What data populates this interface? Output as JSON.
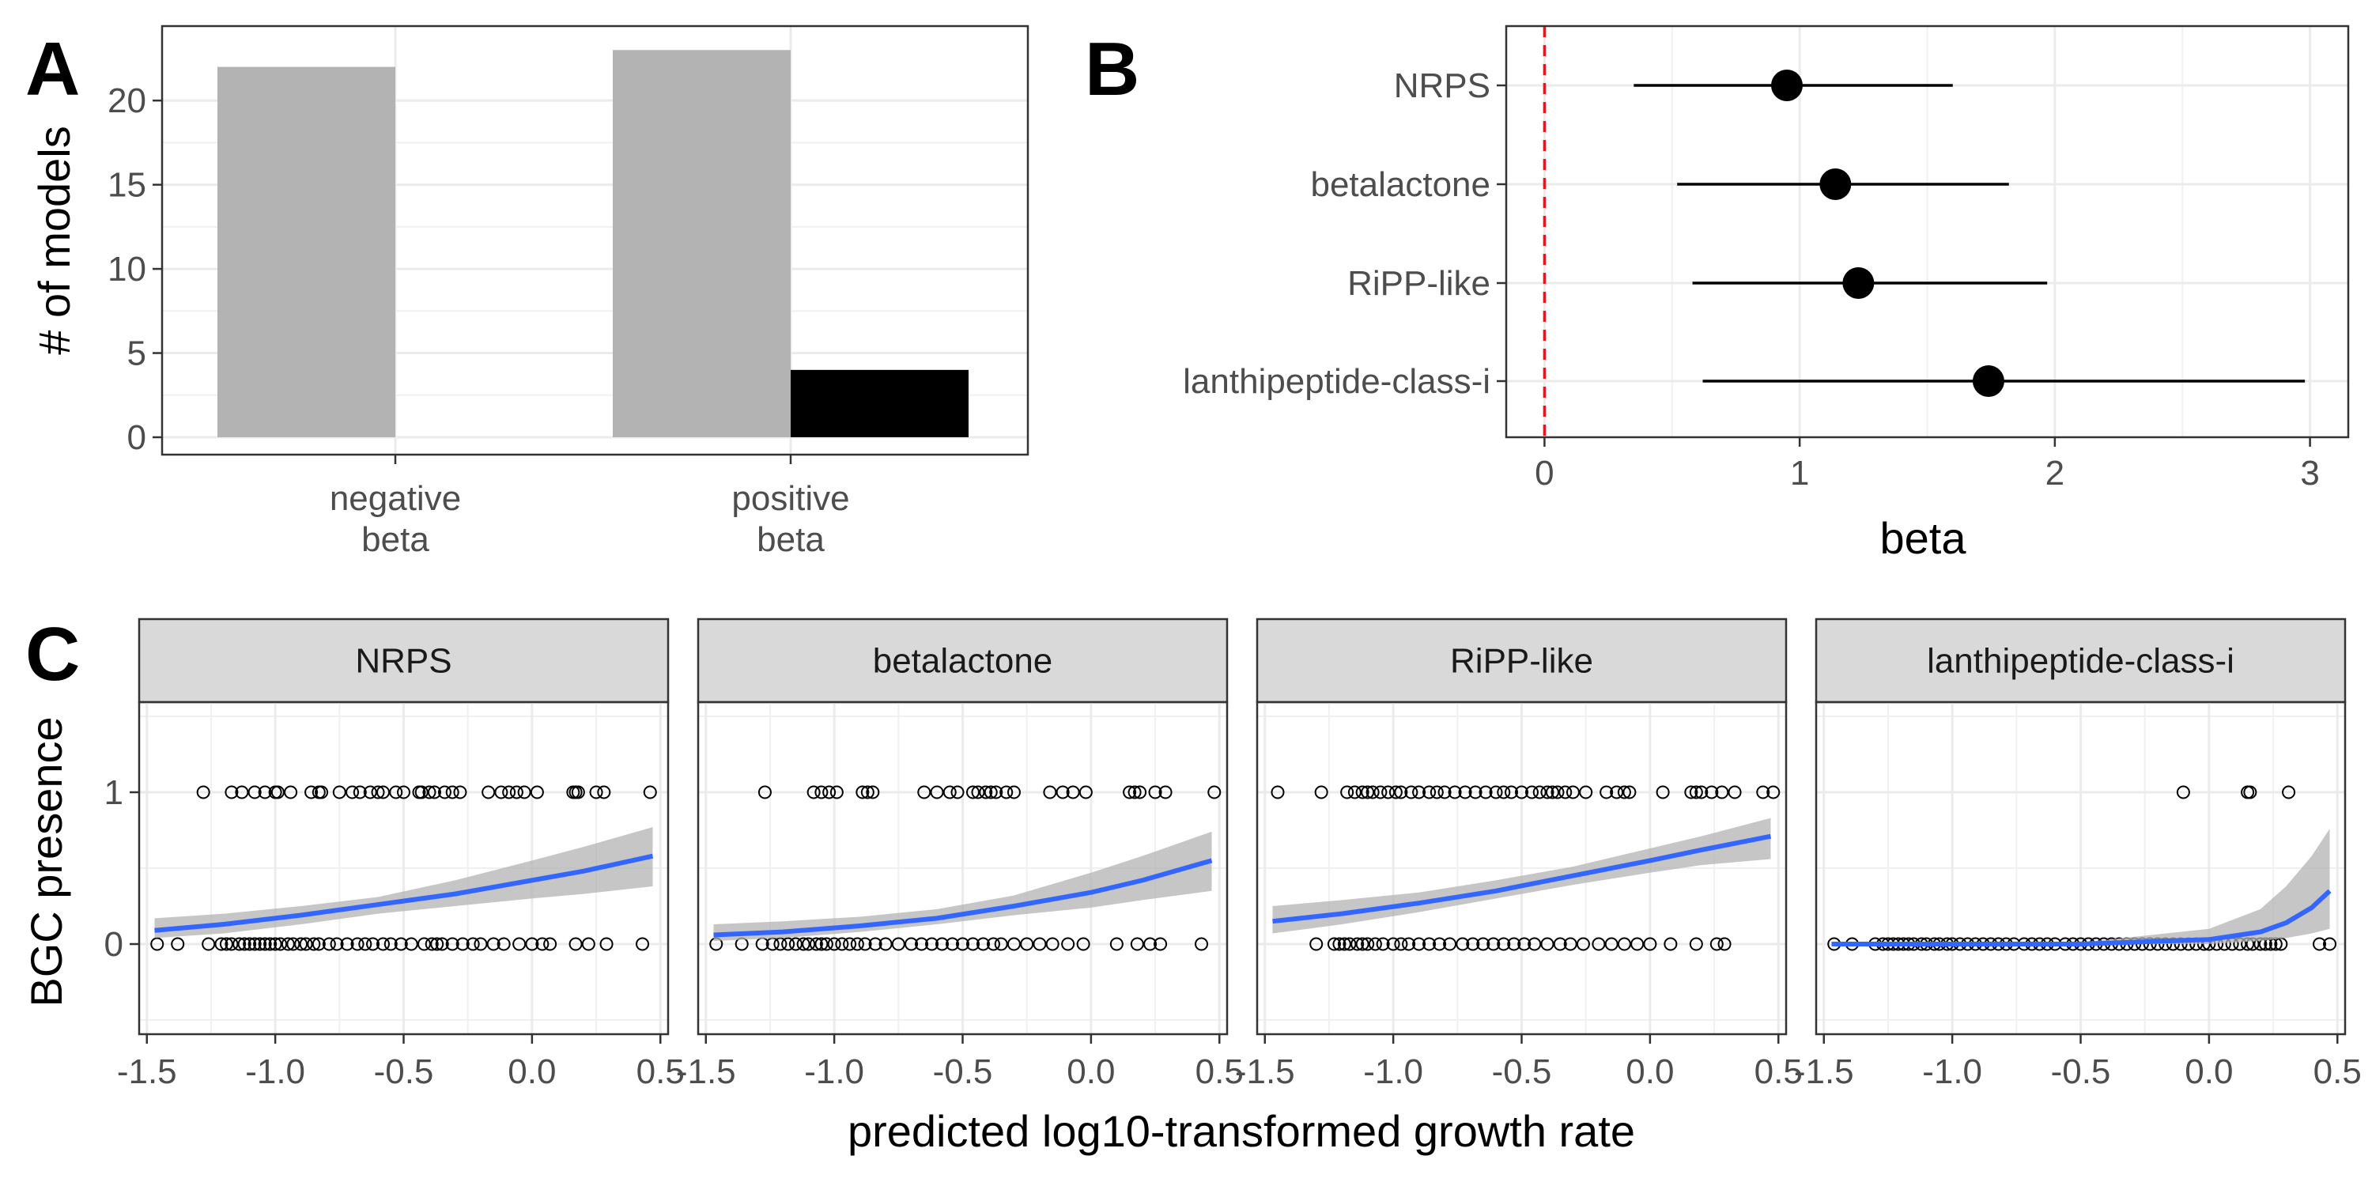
{
  "panels": {
    "a": "A",
    "b": "B",
    "c": "C"
  },
  "chart_data": [
    {
      "panel": "A",
      "type": "bar",
      "categories": [
        "negative\nbeta",
        "positive\nbeta"
      ],
      "series": [
        {
          "color": "#b3b3b3",
          "values": [
            22,
            23
          ]
        },
        {
          "color": "#000000",
          "values": [
            0,
            4
          ]
        }
      ],
      "ylabel": "# of models",
      "xlabel": "",
      "ylim": [
        0,
        24
      ],
      "yticks": [
        0,
        5,
        10,
        15,
        20
      ],
      "grid": true
    },
    {
      "panel": "B",
      "type": "scatter",
      "subtype": "point-range",
      "categories": [
        "NRPS",
        "betalactone",
        "RiPP-like",
        "lanthipeptide-class-i"
      ],
      "estimates": [
        0.95,
        1.14,
        1.23,
        1.74
      ],
      "lower": [
        0.35,
        0.52,
        0.58,
        0.62
      ],
      "upper": [
        1.6,
        1.82,
        1.97,
        2.98
      ],
      "reference_line": {
        "x": 0,
        "color": "#e31a1c",
        "style": "dashed"
      },
      "xlabel": "beta",
      "xlim": [
        -0.15,
        3.15
      ],
      "xticks": [
        0,
        1,
        2,
        3
      ],
      "grid": true
    },
    {
      "panel": "C",
      "type": "scatter",
      "subtype": "faceted logistic fit",
      "xlabel": "predicted log10-transformed growth rate",
      "ylabel": "BGC presence",
      "xlim": [
        -1.53,
        0.53
      ],
      "ylim": [
        -0.55,
        1.55
      ],
      "xticks": [
        -1.5,
        -1.0,
        -0.5,
        0.0,
        0.5
      ],
      "xtick_labels": [
        "-1.5",
        "-1.0",
        "-0.5",
        "0.0",
        "0.5"
      ],
      "yticks": [
        0,
        1
      ],
      "fit_color": "#3366ff",
      "ribbon_color": "#b3b3b3",
      "facets": [
        {
          "name": "NRPS",
          "points_y1": [
            -1.28,
            -1.17,
            -1.13,
            -1.08,
            -1.04,
            -1.0,
            -0.99,
            -0.94,
            -0.86,
            -0.83,
            -0.82,
            -0.75,
            -0.7,
            -0.67,
            -0.63,
            -0.6,
            -0.58,
            -0.53,
            -0.5,
            -0.44,
            -0.43,
            -0.4,
            -0.38,
            -0.34,
            -0.31,
            -0.28,
            -0.17,
            -0.12,
            -0.09,
            -0.06,
            -0.03,
            0.02,
            0.16,
            0.17,
            0.18,
            0.25,
            0.28,
            0.46
          ],
          "points_y0": [
            -1.46,
            -1.38,
            -1.26,
            -1.21,
            -1.19,
            -1.17,
            -1.14,
            -1.12,
            -1.1,
            -1.08,
            -1.06,
            -1.04,
            -1.02,
            -1.0,
            -0.98,
            -0.95,
            -0.93,
            -0.9,
            -0.88,
            -0.85,
            -0.83,
            -0.79,
            -0.76,
            -0.72,
            -0.68,
            -0.65,
            -0.62,
            -0.58,
            -0.55,
            -0.51,
            -0.47,
            -0.42,
            -0.39,
            -0.37,
            -0.35,
            -0.31,
            -0.27,
            -0.23,
            -0.2,
            -0.15,
            -0.11,
            -0.05,
            0.0,
            0.04,
            0.07,
            0.17,
            0.22,
            0.29,
            0.43
          ],
          "fit_x": [
            -1.47,
            -1.2,
            -0.9,
            -0.6,
            -0.3,
            0.0,
            0.2,
            0.47
          ],
          "fit_y": [
            0.09,
            0.13,
            0.19,
            0.26,
            0.33,
            0.42,
            0.48,
            0.58
          ],
          "fit_lo": [
            0.04,
            0.07,
            0.13,
            0.2,
            0.25,
            0.3,
            0.33,
            0.38
          ],
          "fit_hi": [
            0.17,
            0.2,
            0.25,
            0.31,
            0.42,
            0.55,
            0.64,
            0.77
          ]
        },
        {
          "name": "betalactone",
          "points_y1": [
            -1.27,
            -1.08,
            -1.05,
            -1.02,
            -0.99,
            -0.89,
            -0.87,
            -0.85,
            -0.65,
            -0.6,
            -0.55,
            -0.52,
            -0.46,
            -0.44,
            -0.41,
            -0.39,
            -0.37,
            -0.33,
            -0.3,
            -0.16,
            -0.11,
            -0.07,
            -0.02,
            0.15,
            0.17,
            0.19,
            0.25,
            0.29,
            0.48
          ],
          "points_y0": [
            -1.46,
            -1.36,
            -1.28,
            -1.24,
            -1.21,
            -1.18,
            -1.15,
            -1.12,
            -1.1,
            -1.07,
            -1.05,
            -1.03,
            -1.0,
            -0.97,
            -0.94,
            -0.91,
            -0.88,
            -0.84,
            -0.8,
            -0.75,
            -0.7,
            -0.66,
            -0.62,
            -0.58,
            -0.54,
            -0.5,
            -0.46,
            -0.42,
            -0.38,
            -0.35,
            -0.3,
            -0.25,
            -0.2,
            -0.15,
            -0.09,
            -0.03,
            0.1,
            0.18,
            0.23,
            0.27,
            0.43
          ],
          "fit_x": [
            -1.47,
            -1.2,
            -0.9,
            -0.6,
            -0.3,
            0.0,
            0.2,
            0.47
          ],
          "fit_y": [
            0.06,
            0.08,
            0.12,
            0.17,
            0.25,
            0.34,
            0.42,
            0.55
          ],
          "fit_lo": [
            0.02,
            0.04,
            0.08,
            0.13,
            0.19,
            0.24,
            0.29,
            0.35
          ],
          "fit_hi": [
            0.13,
            0.15,
            0.18,
            0.23,
            0.32,
            0.47,
            0.58,
            0.74
          ]
        },
        {
          "name": "RiPP-like",
          "points_y1": [
            -1.45,
            -1.28,
            -1.18,
            -1.15,
            -1.12,
            -1.1,
            -1.08,
            -1.05,
            -1.02,
            -0.99,
            -0.97,
            -0.93,
            -0.9,
            -0.86,
            -0.83,
            -0.8,
            -0.76,
            -0.72,
            -0.68,
            -0.64,
            -0.6,
            -0.57,
            -0.54,
            -0.5,
            -0.46,
            -0.43,
            -0.4,
            -0.38,
            -0.36,
            -0.33,
            -0.3,
            -0.25,
            -0.17,
            -0.13,
            -0.1,
            -0.08,
            0.05,
            0.16,
            0.18,
            0.2,
            0.24,
            0.28,
            0.33,
            0.44,
            0.48
          ],
          "points_y0": [
            -1.3,
            -1.23,
            -1.21,
            -1.19,
            -1.17,
            -1.14,
            -1.12,
            -1.1,
            -1.07,
            -1.04,
            -1.0,
            -0.97,
            -0.94,
            -0.9,
            -0.86,
            -0.82,
            -0.78,
            -0.73,
            -0.69,
            -0.65,
            -0.61,
            -0.57,
            -0.53,
            -0.49,
            -0.45,
            -0.4,
            -0.35,
            -0.31,
            -0.26,
            -0.2,
            -0.15,
            -0.1,
            -0.05,
            0.0,
            0.08,
            0.18,
            0.26,
            0.29
          ],
          "fit_x": [
            -1.47,
            -1.2,
            -0.9,
            -0.6,
            -0.3,
            0.0,
            0.2,
            0.47
          ],
          "fit_y": [
            0.15,
            0.2,
            0.27,
            0.35,
            0.45,
            0.55,
            0.62,
            0.71
          ],
          "fit_lo": [
            0.07,
            0.13,
            0.21,
            0.3,
            0.39,
            0.47,
            0.52,
            0.56
          ],
          "fit_hi": [
            0.25,
            0.29,
            0.34,
            0.42,
            0.51,
            0.63,
            0.71,
            0.83
          ]
        },
        {
          "name": "lanthipeptide-class-i",
          "points_y1": [
            -0.1,
            0.15,
            0.16,
            0.31
          ],
          "points_y0": [
            -1.46,
            -1.39,
            -1.3,
            -1.27,
            -1.25,
            -1.23,
            -1.21,
            -1.19,
            -1.17,
            -1.15,
            -1.12,
            -1.1,
            -1.07,
            -1.05,
            -1.02,
            -1.0,
            -0.97,
            -0.94,
            -0.91,
            -0.88,
            -0.85,
            -0.82,
            -0.79,
            -0.76,
            -0.72,
            -0.69,
            -0.66,
            -0.63,
            -0.6,
            -0.56,
            -0.53,
            -0.5,
            -0.47,
            -0.44,
            -0.41,
            -0.38,
            -0.35,
            -0.32,
            -0.29,
            -0.26,
            -0.23,
            -0.2,
            -0.17,
            -0.14,
            -0.11,
            -0.08,
            -0.05,
            -0.02,
            0.0,
            0.03,
            0.06,
            0.09,
            0.12,
            0.15,
            0.17,
            0.2,
            0.22,
            0.24,
            0.26,
            0.28,
            0.43,
            0.47
          ],
          "fit_x": [
            -1.47,
            -1.0,
            -0.5,
            0.0,
            0.2,
            0.3,
            0.4,
            0.47
          ],
          "fit_y": [
            0.0,
            0.0,
            0.0,
            0.03,
            0.08,
            0.14,
            0.24,
            0.35
          ],
          "fit_lo": [
            0.0,
            0.0,
            0.0,
            0.0,
            0.02,
            0.04,
            0.07,
            0.1
          ],
          "fit_hi": [
            0.01,
            0.01,
            0.01,
            0.1,
            0.23,
            0.38,
            0.58,
            0.76
          ]
        }
      ]
    }
  ]
}
